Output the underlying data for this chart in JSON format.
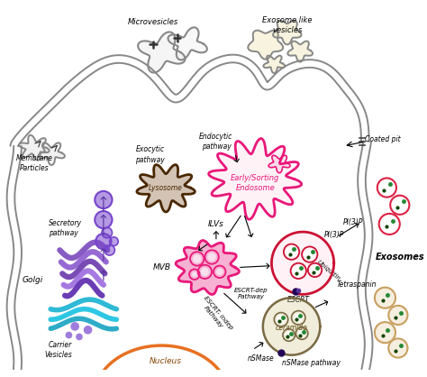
{
  "bg_color": "#ffffff",
  "membrane_color": "#888888",
  "membrane_lw": 1.5,
  "golgi_purples": [
    "#7744bb",
    "#8855cc",
    "#6633aa",
    "#9966dd",
    "#5522aa"
  ],
  "golgi_blues": [
    "#00aacc",
    "#00bbdd",
    "#0099bb"
  ],
  "lysosome_color": "#4a2800",
  "lysosome_fill": "#6b3a0a",
  "early_endosome_color": "#e8187a",
  "mvb_color": "#e8187a",
  "mvb_fill": "#f590c0",
  "escrt_color": "#cc1133",
  "ceramide_color": "#7a6a44",
  "ceramide_fill": "#c8b870",
  "nucleus_color": "#e87020",
  "purple_v": "#7744cc",
  "exo_red": "#dd2244",
  "exo_tan": "#c8a060",
  "green_dot": "#228833",
  "dark_green": "#114400",
  "arrow_color": "#000000",
  "purple_arrow": "#553399",
  "labels": {
    "microvesicles": "Microvesicles",
    "exosome_like": "Exosome like\nvesicles",
    "membrane_particles": "Membrane\nParticles",
    "exocytic_pathway": "Exocytic\npathway",
    "secretory_pathway": "Secretory\npathway",
    "lysosome": "Lysosome",
    "endocytic_pathway": "Endocytic\npathway",
    "coated_pit": "Coated pit",
    "early_sorting": "Early/Sorting\nEndosome",
    "ilvs": "ILVs",
    "mvb": "MVB",
    "escrt_dep": "ESCRT-dep\nPathway",
    "escrt_indep": "ESCRT- indep\nPathway",
    "pi3p": "PI(3)P",
    "ubiquitin": "Ubiquitin",
    "escrt": "ESCRT",
    "exosomes": "Exosomes",
    "ceramide": "ceramide",
    "tetraspanin": "Tetraspanin",
    "nsmase": "nSMase",
    "nsmase_pathway": "nSMase pathway",
    "golgi": "Golgi",
    "carrier_vesicles": "Carrier\nVesicles",
    "nucleus": "Nucleus"
  }
}
